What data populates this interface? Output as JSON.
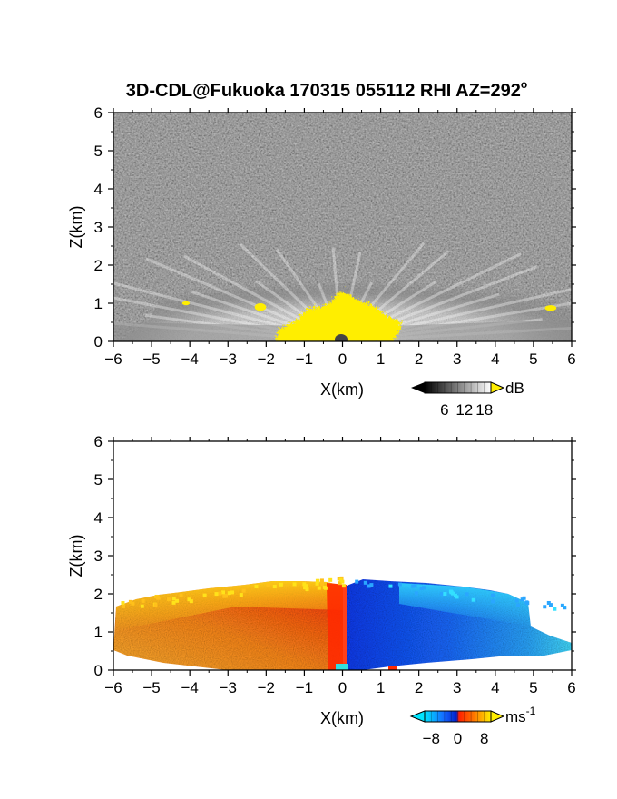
{
  "chart_data": [
    {
      "type": "heatmap",
      "title_main": "3D-CDL@Fukuoka 170315 055112 RHI AZ=292",
      "title_sup": "o",
      "xlabel": "X(km)",
      "ylabel": "Z(km)",
      "xlim": [
        -6,
        6
      ],
      "ylim": [
        0,
        6
      ],
      "xticks": [
        "-6",
        "-5",
        "-4",
        "-3",
        "-2",
        "-1",
        "0",
        "1",
        "2",
        "3",
        "4",
        "5",
        "6"
      ],
      "yticks": [
        "0",
        "1",
        "2",
        "3",
        "4",
        "5",
        "6"
      ],
      "colorbar": {
        "unit": "dB",
        "unit_sup": "",
        "ticks": [
          "6",
          "12",
          "18"
        ],
        "tick_values": [
          6,
          12,
          18
        ],
        "range": [
          0,
          20
        ],
        "colors": [
          "#000000",
          "#ffffff"
        ],
        "extend_high_color": "#ffee00"
      },
      "colors": {
        "background_noise": "#2a2a2a",
        "echo": "#ffffff",
        "strong": "#ffee00"
      },
      "regions": [
        {
          "x0": 0.25,
          "x1": 0.9,
          "z0": 0,
          "z1": 0.9,
          "desc_key": "strong-center"
        },
        {
          "x0": -2.3,
          "x1": -2.0,
          "z0": 0.8,
          "z1": 1.0,
          "desc_key": "strong-left"
        },
        {
          "x0": -4.2,
          "x1": -4.0,
          "z0": 0.95,
          "z1": 1.05,
          "desc_key": "strong-far-left"
        },
        {
          "x0": 5.3,
          "x1": 5.6,
          "z0": 0.8,
          "z1": 0.95,
          "desc_key": "strong-right"
        }
      ]
    },
    {
      "type": "heatmap",
      "title_main": "",
      "title_sup": "",
      "xlabel": "X(km)",
      "ylabel": "Z(km)",
      "xlim": [
        -6,
        6
      ],
      "ylim": [
        0,
        6
      ],
      "xticks": [
        "-6",
        "-5",
        "-4",
        "-3",
        "-2",
        "-1",
        "0",
        "1",
        "2",
        "3",
        "4",
        "5",
        "6"
      ],
      "yticks": [
        "0",
        "1",
        "2",
        "3",
        "4",
        "5",
        "6"
      ],
      "colorbar": {
        "unit": "ms",
        "unit_sup": "-1",
        "ticks": [
          "-8",
          "0",
          "8"
        ],
        "tick_values": [
          -8,
          0,
          8
        ],
        "range": [
          -10,
          10
        ],
        "colors": [
          "#00e5ff",
          "#1565ff",
          "#0020c8",
          "#ff2000",
          "#ff7a00",
          "#ffee00"
        ]
      },
      "velocity_field": {
        "negative_side_color": "#1a5cff",
        "positive_side_color": "#ff7a1a",
        "top_left_color": "#ffd21a",
        "top_right_color": "#33d6ff",
        "center_color": "#ff2a00"
      }
    }
  ]
}
